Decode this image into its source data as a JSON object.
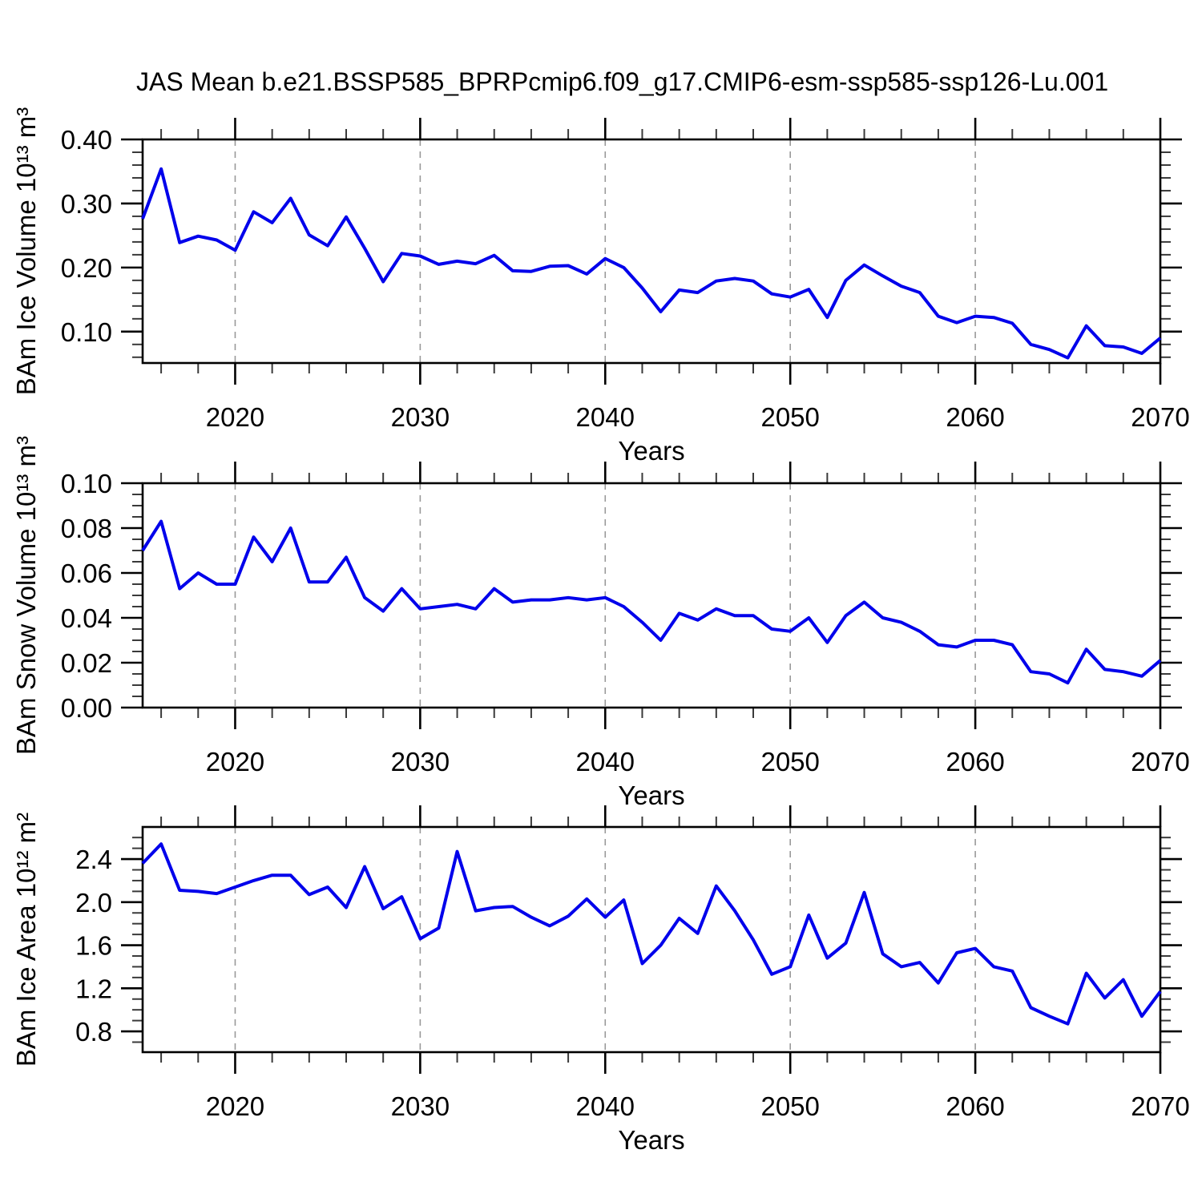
{
  "title": "JAS Mean b.e21.BSSP585_BPRPcmip6.f09_g17.CMIP6-esm-ssp585-ssp126-Lu.001",
  "colors": {
    "line": "#0000eb",
    "grid": "#999999",
    "axis": "#000000",
    "minor_tick": "#3a3a3a",
    "background": "#ffffff"
  },
  "chart_data": {
    "type": "line",
    "title": "JAS Mean b.e21.BSSP585_BPRPcmip6.f09_g17.CMIP6-esm-ssp585-ssp126-Lu.001",
    "xlabel": "Years",
    "x_range": [
      2015,
      2070
    ],
    "xticks": [
      2020,
      2030,
      2040,
      2050,
      2060,
      2070
    ],
    "x_minor_step_years": 2,
    "grid": "vertical dashed lines at decade ticks",
    "legend": "none",
    "years": [
      2015,
      2016,
      2017,
      2018,
      2019,
      2020,
      2021,
      2022,
      2023,
      2024,
      2025,
      2026,
      2027,
      2028,
      2029,
      2030,
      2031,
      2032,
      2033,
      2034,
      2035,
      2036,
      2037,
      2038,
      2039,
      2040,
      2041,
      2042,
      2043,
      2044,
      2045,
      2046,
      2047,
      2048,
      2049,
      2050,
      2051,
      2052,
      2053,
      2054,
      2055,
      2056,
      2057,
      2058,
      2059,
      2060,
      2061,
      2062,
      2063,
      2064,
      2065,
      2066,
      2067,
      2068,
      2069,
      2070
    ],
    "panels": [
      {
        "name": "ice-volume",
        "ylabel": "BAm Ice Volume 10¹³ m³",
        "ylim": [
          0.051,
          0.4
        ],
        "yticks": [
          0.1,
          0.2,
          0.3,
          0.4
        ],
        "ytick_labels": [
          "0.10",
          "0.20",
          "0.30",
          "0.40"
        ],
        "y_minor_step": 0.02,
        "values": [
          0.276,
          0.354,
          0.239,
          0.249,
          0.243,
          0.227,
          0.287,
          0.27,
          0.308,
          0.251,
          0.234,
          0.279,
          0.23,
          0.178,
          0.222,
          0.218,
          0.205,
          0.21,
          0.206,
          0.219,
          0.195,
          0.194,
          0.202,
          0.203,
          0.19,
          0.214,
          0.2,
          0.168,
          0.131,
          0.165,
          0.161,
          0.179,
          0.183,
          0.179,
          0.159,
          0.154,
          0.166,
          0.122,
          0.18,
          0.204,
          0.187,
          0.171,
          0.161,
          0.124,
          0.114,
          0.124,
          0.122,
          0.113,
          0.08,
          0.072,
          0.059,
          0.109,
          0.078,
          0.076,
          0.066,
          0.09
        ]
      },
      {
        "name": "snow-volume",
        "ylabel": "BAm Snow Volume 10¹³ m³",
        "ylim": [
          0.0,
          0.1
        ],
        "yticks": [
          0.0,
          0.02,
          0.04,
          0.06,
          0.08,
          0.1
        ],
        "ytick_labels": [
          "0.00",
          "0.02",
          "0.04",
          "0.06",
          "0.08",
          "0.10"
        ],
        "y_minor_step": 0.005,
        "values": [
          0.07,
          0.083,
          0.053,
          0.06,
          0.055,
          0.055,
          0.076,
          0.065,
          0.08,
          0.056,
          0.056,
          0.067,
          0.049,
          0.043,
          0.053,
          0.044,
          0.045,
          0.046,
          0.044,
          0.053,
          0.047,
          0.048,
          0.048,
          0.049,
          0.048,
          0.049,
          0.045,
          0.038,
          0.03,
          0.042,
          0.039,
          0.044,
          0.041,
          0.041,
          0.035,
          0.034,
          0.04,
          0.029,
          0.041,
          0.047,
          0.04,
          0.038,
          0.034,
          0.028,
          0.027,
          0.03,
          0.03,
          0.028,
          0.016,
          0.015,
          0.011,
          0.026,
          0.017,
          0.016,
          0.014,
          0.021
        ]
      },
      {
        "name": "ice-area",
        "ylabel": "BAm Ice Area 10¹² m²",
        "ylim": [
          0.607,
          2.698
        ],
        "yticks": [
          0.8,
          1.2,
          1.6,
          2.0,
          2.4
        ],
        "ytick_labels": [
          "0.8",
          "1.2",
          "1.6",
          "2.0",
          "2.4"
        ],
        "y_minor_step": 0.1,
        "values": [
          2.36,
          2.54,
          2.11,
          2.1,
          2.08,
          2.14,
          2.2,
          2.25,
          2.25,
          2.07,
          2.14,
          1.95,
          2.33,
          1.94,
          2.05,
          1.66,
          1.76,
          2.47,
          1.92,
          1.95,
          1.96,
          1.86,
          1.78,
          1.87,
          2.03,
          1.86,
          2.02,
          1.43,
          1.6,
          1.85,
          1.71,
          2.15,
          1.92,
          1.65,
          1.33,
          1.4,
          1.88,
          1.48,
          1.62,
          2.09,
          1.52,
          1.4,
          1.44,
          1.25,
          1.53,
          1.57,
          1.4,
          1.36,
          1.02,
          0.94,
          0.87,
          1.34,
          1.11,
          1.28,
          0.94,
          1.17
        ]
      }
    ]
  }
}
